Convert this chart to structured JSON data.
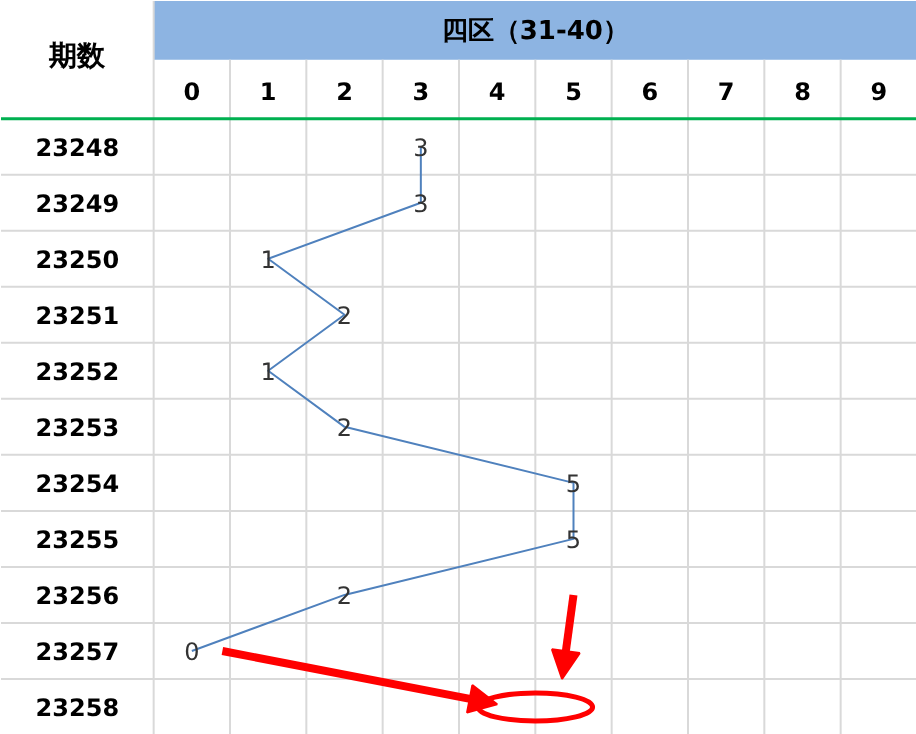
{
  "chart_data": {
    "type": "line",
    "orientation": "horizontal",
    "title": "四区（31-40）",
    "ylabel": "期数",
    "categories": [
      "23248",
      "23249",
      "23250",
      "23251",
      "23252",
      "23253",
      "23254",
      "23255",
      "23256",
      "23257",
      "23258"
    ],
    "values": [
      3,
      3,
      1,
      2,
      1,
      2,
      5,
      5,
      2,
      0,
      null
    ],
    "xlim": [
      -2.5,
      9.5
    ],
    "xticks": [
      0,
      1,
      2,
      3,
      4,
      5,
      6,
      7,
      8,
      9
    ],
    "color": "#4f81bd",
    "data_labels": true,
    "grid": true
  }
}
